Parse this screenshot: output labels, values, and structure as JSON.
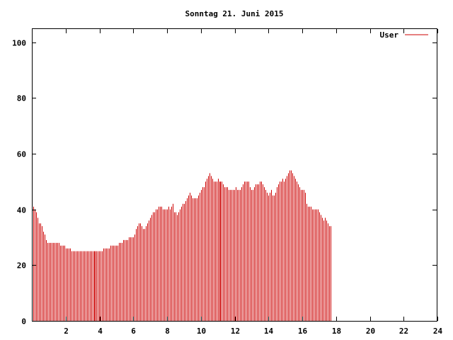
{
  "colors": {
    "series": "#cc0000",
    "axis": "#000000",
    "background": "#ffffff"
  },
  "chart_data": {
    "type": "bar",
    "title": "Sonntag 21. Juni 2015",
    "xlabel": "",
    "ylabel": "",
    "xlim": [
      0,
      24
    ],
    "ylim": [
      0,
      105
    ],
    "xticks": [
      2,
      4,
      6,
      8,
      10,
      12,
      14,
      16,
      18,
      20,
      22,
      24
    ],
    "xtick_labels": [
      "2",
      "4",
      "6",
      "8",
      "10",
      "12",
      "14",
      "16",
      "18",
      "20",
      "22",
      "24"
    ],
    "yticks": [
      0,
      20,
      40,
      60,
      80,
      100
    ],
    "ytick_labels": [
      "0",
      "20",
      "40",
      "60",
      "80",
      "100"
    ],
    "grid": false,
    "legend": {
      "position": "top-right",
      "entries": [
        "User"
      ]
    },
    "sample_interval_hours": 0.0833,
    "series": [
      {
        "name": "User",
        "values": [
          41,
          41,
          40,
          39,
          37,
          35,
          35,
          34,
          32,
          31,
          29,
          28,
          28,
          28,
          28,
          28,
          28,
          28,
          28,
          28,
          27,
          27,
          27,
          27,
          26,
          26,
          26,
          26,
          25,
          25,
          25,
          25,
          25,
          25,
          25,
          25,
          25,
          25,
          25,
          25,
          25,
          25,
          25,
          25,
          25,
          25,
          25,
          25,
          25,
          25,
          25,
          26,
          26,
          26,
          26,
          26,
          27,
          27,
          27,
          27,
          27,
          27,
          28,
          28,
          28,
          29,
          29,
          29,
          29,
          30,
          30,
          30,
          30,
          31,
          33,
          34,
          35,
          35,
          34,
          33,
          33,
          34,
          35,
          36,
          37,
          38,
          39,
          39,
          40,
          40,
          41,
          41,
          41,
          40,
          40,
          40,
          40,
          41,
          40,
          41,
          42,
          39,
          39,
          38,
          39,
          40,
          41,
          42,
          42,
          43,
          44,
          45,
          46,
          45,
          44,
          44,
          44,
          44,
          45,
          46,
          47,
          48,
          48,
          50,
          51,
          52,
          53,
          52,
          51,
          50,
          50,
          50,
          51,
          50,
          50,
          50,
          49,
          48,
          48,
          48,
          47,
          47,
          47,
          47,
          47,
          48,
          47,
          47,
          47,
          48,
          49,
          50,
          50,
          50,
          50,
          48,
          47,
          47,
          48,
          49,
          49,
          49,
          50,
          50,
          49,
          48,
          47,
          46,
          45,
          46,
          47,
          45,
          45,
          46,
          48,
          49,
          50,
          50,
          51,
          50,
          51,
          52,
          53,
          54,
          54,
          53,
          52,
          51,
          50,
          49,
          48,
          47,
          47,
          47,
          46,
          42,
          41,
          41,
          41,
          40,
          40,
          40,
          40,
          40,
          39,
          38,
          37,
          36,
          37,
          36,
          35,
          34,
          34
        ]
      }
    ]
  }
}
